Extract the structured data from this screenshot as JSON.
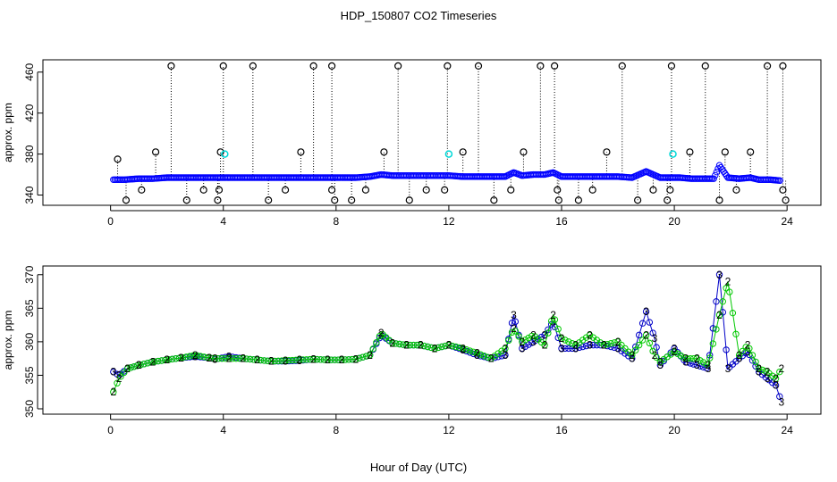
{
  "title": "HDP_150807  CO2 Timeseries",
  "xlabel": "Hour of Day (UTC)",
  "chart_data": [
    {
      "type": "scatter",
      "name": "top-panel",
      "ylabel": "approx. ppm",
      "xlim": [
        -2.4,
        25.2
      ],
      "ylim": [
        330,
        472
      ],
      "xticks": [
        0,
        4,
        8,
        12,
        16,
        20,
        24
      ],
      "yticks": [
        340,
        380,
        420,
        460
      ],
      "series": [
        {
          "name": "blue-baseline",
          "color": "#0000ff",
          "x": [
            0.1,
            0.5,
            1.0,
            1.5,
            2.0,
            2.5,
            3.0,
            3.5,
            3.7,
            4.2,
            4.7,
            5.2,
            5.7,
            6.2,
            6.7,
            7.2,
            7.7,
            8.2,
            8.7,
            9.2,
            9.6,
            10.0,
            10.5,
            11.0,
            11.5,
            12.0,
            12.5,
            13.0,
            13.5,
            14.0,
            14.3,
            14.6,
            15.0,
            15.4,
            15.7,
            16.0,
            16.5,
            17.0,
            17.5,
            18.0,
            18.5,
            19.0,
            19.5,
            19.9,
            20.2,
            20.6,
            21.0,
            21.4,
            21.6,
            21.9,
            22.3,
            22.7,
            23.0,
            23.4,
            23.8
          ],
          "values": [
            355,
            355,
            356,
            356,
            357,
            357,
            357,
            357,
            357,
            357,
            357,
            357,
            357,
            357,
            357,
            357,
            357,
            357,
            357,
            358,
            360,
            359,
            359,
            359,
            359,
            359,
            358,
            358,
            358,
            358,
            362,
            359,
            360,
            360,
            362,
            358,
            358,
            358,
            358,
            358,
            357,
            363,
            357,
            357,
            357,
            356,
            356,
            356,
            369,
            357,
            356,
            357,
            355,
            355,
            354
          ]
        },
        {
          "name": "black-spikes",
          "color": "#000000",
          "x": [
            0.25,
            1.6,
            2.15,
            3.9,
            4.0,
            5.05,
            6.75,
            7.2,
            7.85,
            9.7,
            10.2,
            11.95,
            12.5,
            13.05,
            14.65,
            15.25,
            15.75,
            17.6,
            18.15,
            19.9,
            20.55,
            21.1,
            21.8,
            22.7,
            23.3,
            23.85
          ],
          "values": [
            375,
            382,
            466,
            382,
            466,
            466,
            382,
            466,
            466,
            382,
            466,
            466,
            382,
            466,
            382,
            466,
            466,
            382,
            466,
            466,
            382,
            466,
            382,
            382,
            466,
            466
          ]
        },
        {
          "name": "black-dips",
          "color": "#000000",
          "x": [
            0.55,
            1.1,
            2.7,
            3.3,
            3.8,
            3.85,
            5.6,
            6.2,
            7.85,
            7.95,
            8.55,
            9.05,
            10.6,
            11.2,
            11.85,
            13.6,
            14.2,
            15.85,
            15.9,
            16.6,
            17.1,
            18.7,
            19.25,
            19.75,
            19.85,
            21.6,
            22.2,
            23.85,
            23.95
          ],
          "values": [
            335,
            345,
            335,
            345,
            335,
            345,
            335,
            345,
            345,
            335,
            335,
            345,
            335,
            345,
            345,
            335,
            345,
            345,
            335,
            335,
            345,
            335,
            345,
            335,
            345,
            335,
            345,
            345,
            335
          ]
        },
        {
          "name": "cyan-points",
          "color": "#00d8d8",
          "x": [
            4.05,
            12.0,
            19.95
          ],
          "values": [
            380,
            380,
            380
          ]
        }
      ]
    },
    {
      "type": "scatter",
      "name": "bottom-panel",
      "ylabel": "approx. ppm",
      "xlim": [
        -2.4,
        25.2
      ],
      "ylim": [
        349.2,
        371.3
      ],
      "xticks": [
        0,
        4,
        8,
        12,
        16,
        20,
        24
      ],
      "yticks": [
        350,
        355,
        360,
        365,
        370
      ],
      "series": [
        {
          "name": "3",
          "color": "#0000c8",
          "x": [
            0.1,
            0.3,
            0.6,
            1.0,
            1.5,
            2.0,
            2.5,
            3.0,
            3.5,
            3.7,
            4.2,
            4.7,
            5.2,
            5.7,
            6.2,
            6.7,
            7.2,
            7.7,
            8.2,
            8.7,
            9.2,
            9.6,
            10.0,
            10.5,
            11.0,
            11.5,
            12.0,
            12.5,
            13.0,
            13.5,
            14.0,
            14.3,
            14.6,
            15.0,
            15.4,
            15.7,
            16.0,
            16.5,
            17.0,
            17.5,
            18.0,
            18.5,
            19.0,
            19.3,
            19.5,
            20.0,
            20.4,
            20.8,
            21.2,
            21.6,
            21.9,
            22.3,
            22.6,
            23.0,
            23.3,
            23.6,
            23.8
          ],
          "values": [
            355.5,
            355,
            356,
            356.5,
            357,
            357.3,
            357.6,
            357.8,
            357.6,
            357.4,
            357.8,
            357.5,
            357.3,
            357.1,
            357.1,
            357.2,
            357.4,
            357.3,
            357.3,
            357.4,
            358,
            361,
            359.8,
            359.5,
            359.5,
            359,
            359.5,
            358.8,
            358,
            357.5,
            358,
            364,
            359,
            360,
            361,
            363,
            359,
            359,
            359.5,
            359.5,
            359,
            357.5,
            364.5,
            360.5,
            356.5,
            359,
            357,
            356.5,
            356,
            370,
            356,
            357.5,
            358.5,
            355.5,
            354.5,
            353.5,
            351
          ]
        },
        {
          "name": "2",
          "color": "#00c800",
          "x": [
            0.1,
            0.3,
            0.6,
            1.0,
            1.5,
            2.0,
            2.5,
            3.0,
            3.5,
            3.7,
            4.2,
            4.7,
            5.2,
            5.7,
            6.2,
            6.7,
            7.2,
            7.7,
            8.2,
            8.7,
            9.2,
            9.6,
            10.0,
            10.5,
            11.0,
            11.5,
            12.0,
            12.5,
            13.0,
            13.5,
            14.0,
            14.3,
            14.6,
            15.0,
            15.4,
            15.7,
            16.0,
            16.5,
            17.0,
            17.5,
            18.0,
            18.5,
            19.0,
            19.3,
            19.5,
            20.0,
            20.4,
            20.8,
            21.2,
            21.6,
            21.9,
            22.3,
            22.6,
            23.0,
            23.3,
            23.6,
            23.8
          ],
          "values": [
            352.5,
            354.5,
            356,
            356.5,
            357,
            357.3,
            357.6,
            358,
            357.6,
            357.5,
            357.5,
            357.5,
            357.3,
            357.1,
            357.2,
            357.3,
            357.4,
            357.3,
            357.3,
            357.4,
            358,
            361.3,
            359.8,
            359.5,
            359.5,
            359,
            359.5,
            359,
            358.3,
            357.5,
            359,
            362,
            360,
            361,
            359.5,
            364,
            360.5,
            359.5,
            361,
            359.5,
            360,
            358,
            361,
            358,
            357,
            358.5,
            357.5,
            357.5,
            356.5,
            364,
            369,
            358,
            359.5,
            356,
            355.5,
            354.5,
            356
          ]
        }
      ]
    }
  ]
}
